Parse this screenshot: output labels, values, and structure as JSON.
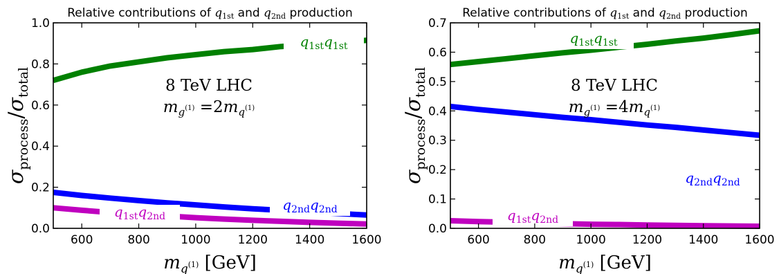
{
  "chart_data": [
    {
      "type": "line",
      "title": "Relative contributions of q1st and q2nd production",
      "title_parts": {
        "pre": "Relative contributions of ",
        "q1": "q",
        "q1_sub": "1st",
        "mid": " and ",
        "q2": "q",
        "q2_sub": "2nd",
        "post": " production"
      },
      "xlabel": "m_q(1) [GeV]",
      "xlabel_parts": {
        "m": "m",
        "q": "q",
        "sup": "(1)",
        "unit": "[GeV]"
      },
      "ylabel": "σ_process/σ_total",
      "ylabel_parts": {
        "sigma1": "σ",
        "sub1": "process",
        "slash": "/",
        "sigma2": "σ",
        "sub2": "total"
      },
      "xlim": [
        500,
        1600
      ],
      "ylim": [
        0,
        1.0
      ],
      "xticks": [
        "600",
        "800",
        "1000",
        "1200",
        "1400",
        "1600"
      ],
      "xtick_values": [
        600,
        800,
        1000,
        1200,
        1400,
        1600
      ],
      "yticks": [
        "0.0",
        "0.2",
        "0.4",
        "0.6",
        "0.8",
        "1.0"
      ],
      "ytick_values": [
        0.0,
        0.2,
        0.4,
        0.6,
        0.8,
        1.0
      ],
      "grid": false,
      "annotation": {
        "line1": "8 TeV LHC",
        "m": "m",
        "g": "g",
        "gsup": "(1)",
        "eq": " =2",
        "m2": "m",
        "q": "q",
        "qsup": "(1)"
      },
      "series": [
        {
          "label_parts": {
            "a": "q",
            "a_sub": "1st",
            "b": "q",
            "b_sub": "1st"
          },
          "color": "#008000",
          "x": [
            500,
            600,
            700,
            800,
            900,
            1000,
            1100,
            1200,
            1300,
            1400,
            1500,
            1600
          ],
          "y": [
            0.72,
            0.76,
            0.79,
            0.81,
            0.83,
            0.845,
            0.86,
            0.87,
            0.885,
            0.895,
            0.905,
            0.915
          ]
        },
        {
          "label_parts": {
            "a": "q",
            "a_sub": "2nd",
            "b": "q",
            "b_sub": "2nd"
          },
          "color": "#0000ff",
          "x": [
            500,
            600,
            700,
            800,
            900,
            1000,
            1100,
            1200,
            1300,
            1400,
            1500,
            1600
          ],
          "y": [
            0.175,
            0.16,
            0.147,
            0.135,
            0.124,
            0.114,
            0.104,
            0.095,
            0.088,
            0.08,
            0.072,
            0.065
          ]
        },
        {
          "label_parts": {
            "a": "q",
            "a_sub": "1st",
            "b": "q",
            "b_sub": "2nd"
          },
          "color": "#bf00bf",
          "x": [
            500,
            600,
            700,
            800,
            900,
            1000,
            1100,
            1200,
            1300,
            1400,
            1500,
            1600
          ],
          "y": [
            0.1,
            0.088,
            0.077,
            0.068,
            0.06,
            0.052,
            0.045,
            0.039,
            0.034,
            0.029,
            0.025,
            0.021
          ]
        }
      ]
    },
    {
      "type": "line",
      "title": "Relative contributions of q1st and q2nd production",
      "title_parts": {
        "pre": "Relative contributions of ",
        "q1": "q",
        "q1_sub": "1st",
        "mid": " and ",
        "q2": "q",
        "q2_sub": "2nd",
        "post": " production"
      },
      "xlabel": "m_q(1) [GeV]",
      "xlabel_parts": {
        "m": "m",
        "q": "q",
        "sup": "(1)",
        "unit": "[GeV]"
      },
      "ylabel": "σ_process/σ_total",
      "ylabel_parts": {
        "sigma1": "σ",
        "sub1": "process",
        "slash": "/",
        "sigma2": "σ",
        "sub2": "total"
      },
      "xlim": [
        500,
        1600
      ],
      "ylim": [
        0,
        0.7
      ],
      "xticks": [
        "600",
        "800",
        "1000",
        "1200",
        "1400",
        "1600"
      ],
      "xtick_values": [
        600,
        800,
        1000,
        1200,
        1400,
        1600
      ],
      "yticks": [
        "0.0",
        "0.1",
        "0.2",
        "0.3",
        "0.4",
        "0.5",
        "0.6",
        "0.7"
      ],
      "ytick_values": [
        0.0,
        0.1,
        0.2,
        0.3,
        0.4,
        0.5,
        0.6,
        0.7
      ],
      "grid": false,
      "annotation": {
        "line1": "8 TeV LHC",
        "m": "m",
        "g": "g",
        "gsup": "(1)",
        "eq": " =4",
        "m2": "m",
        "q": "q",
        "qsup": "(1)"
      },
      "series": [
        {
          "label_parts": {
            "a": "q",
            "a_sub": "1st",
            "b": "q",
            "b_sub": "1st"
          },
          "color": "#008000",
          "x": [
            500,
            600,
            700,
            800,
            900,
            1000,
            1100,
            1200,
            1300,
            1400,
            1500,
            1600
          ],
          "y": [
            0.558,
            0.568,
            0.578,
            0.588,
            0.598,
            0.607,
            0.617,
            0.627,
            0.638,
            0.648,
            0.66,
            0.673
          ]
        },
        {
          "label_parts": {
            "a": "q",
            "a_sub": "2nd",
            "b": "q",
            "b_sub": "2nd"
          },
          "color": "#0000ff",
          "x": [
            500,
            600,
            700,
            800,
            900,
            1000,
            1100,
            1200,
            1300,
            1400,
            1500,
            1600
          ],
          "y": [
            0.415,
            0.405,
            0.396,
            0.387,
            0.378,
            0.37,
            0.361,
            0.352,
            0.344,
            0.335,
            0.326,
            0.317
          ]
        },
        {
          "label_parts": {
            "a": "q",
            "a_sub": "1st",
            "b": "q",
            "b_sub": "2nd"
          },
          "color": "#bf00bf",
          "x": [
            500,
            600,
            700,
            800,
            900,
            1000,
            1100,
            1200,
            1300,
            1400,
            1500,
            1600
          ],
          "y": [
            0.026,
            0.023,
            0.021,
            0.018,
            0.016,
            0.014,
            0.013,
            0.011,
            0.01,
            0.009,
            0.008,
            0.007
          ]
        }
      ]
    }
  ]
}
